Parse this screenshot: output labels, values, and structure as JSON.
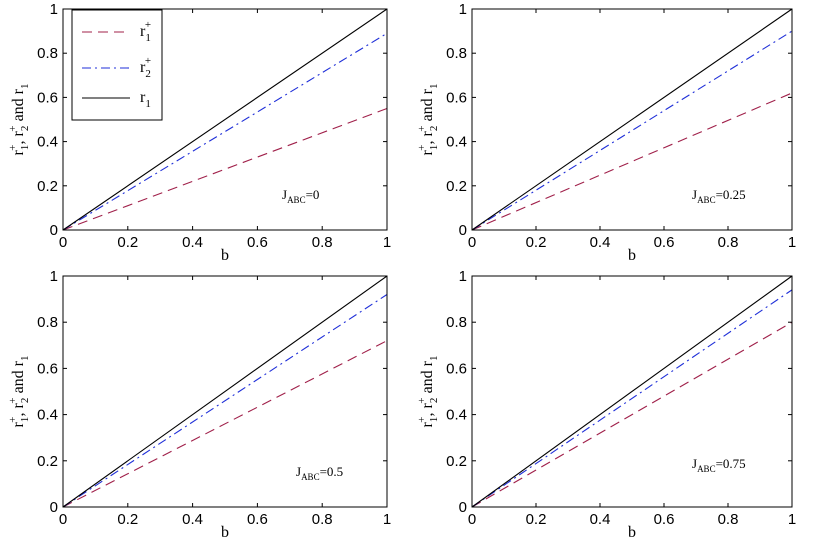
{
  "chart_data": [
    {
      "type": "line",
      "xlabel": "b",
      "ylabel": "r1+, r2+ and r1",
      "xlim": [
        0,
        1
      ],
      "ylim": [
        0,
        1
      ],
      "xticks": [
        "0",
        "0.2",
        "0.4",
        "0.6",
        "0.8",
        "1"
      ],
      "yticks": [
        "0",
        "0.2",
        "0.4",
        "0.6",
        "0.8",
        "1"
      ],
      "annotation": {
        "main": "J",
        "sub": "ABC",
        "value": "=0"
      },
      "legend": {
        "placement": "top-left",
        "entries": [
          {
            "base": "r",
            "sub": "1",
            "sup": "+"
          },
          {
            "base": "r",
            "sub": "2",
            "sup": "+"
          },
          {
            "base": "r",
            "sub": "1",
            "sup": ""
          }
        ]
      },
      "series": [
        {
          "name": "r1+",
          "style": "dashed",
          "color": "#a0204a",
          "x": [
            0,
            1
          ],
          "y": [
            0,
            0.55
          ]
        },
        {
          "name": "r2+",
          "style": "dashdot",
          "color": "#1f2fd8",
          "x": [
            0,
            1
          ],
          "y": [
            0,
            0.89
          ]
        },
        {
          "name": "r1",
          "style": "solid",
          "color": "#000000",
          "x": [
            0,
            1
          ],
          "y": [
            0,
            1
          ]
        }
      ]
    },
    {
      "type": "line",
      "xlabel": "b",
      "ylabel": "r1+, r2+ and r1",
      "xlim": [
        0,
        1
      ],
      "ylim": [
        0,
        1
      ],
      "xticks": [
        "0",
        "0.2",
        "0.4",
        "0.6",
        "0.8",
        "1"
      ],
      "yticks": [
        "0",
        "0.2",
        "0.4",
        "0.6",
        "0.8",
        "1"
      ],
      "annotation": {
        "main": "J",
        "sub": "ABC",
        "value": "=0.25"
      },
      "series": [
        {
          "name": "r1+",
          "style": "dashed",
          "color": "#a0204a",
          "x": [
            0,
            1
          ],
          "y": [
            0,
            0.62
          ]
        },
        {
          "name": "r2+",
          "style": "dashdot",
          "color": "#1f2fd8",
          "x": [
            0,
            1
          ],
          "y": [
            0,
            0.9
          ]
        },
        {
          "name": "r1",
          "style": "solid",
          "color": "#000000",
          "x": [
            0,
            1
          ],
          "y": [
            0,
            1
          ]
        }
      ]
    },
    {
      "type": "line",
      "xlabel": "b",
      "ylabel": "r1+, r2+ and r1",
      "xlim": [
        0,
        1
      ],
      "ylim": [
        0,
        1
      ],
      "xticks": [
        "0",
        "0.2",
        "0.4",
        "0.6",
        "0.8",
        "1"
      ],
      "yticks": [
        "0",
        "0.2",
        "0.4",
        "0.6",
        "0.8",
        "1"
      ],
      "annotation": {
        "main": "J",
        "sub": "ABC",
        "value": "=0.5"
      },
      "series": [
        {
          "name": "r1+",
          "style": "dashed",
          "color": "#a0204a",
          "x": [
            0,
            1
          ],
          "y": [
            0,
            0.72
          ]
        },
        {
          "name": "r2+",
          "style": "dashdot",
          "color": "#1f2fd8",
          "x": [
            0,
            1
          ],
          "y": [
            0,
            0.92
          ]
        },
        {
          "name": "r1",
          "style": "solid",
          "color": "#000000",
          "x": [
            0,
            1
          ],
          "y": [
            0,
            1
          ]
        }
      ]
    },
    {
      "type": "line",
      "xlabel": "b",
      "ylabel": "r1+, r2+ and r1",
      "xlim": [
        0,
        1
      ],
      "ylim": [
        0,
        1
      ],
      "xticks": [
        "0",
        "0.2",
        "0.4",
        "0.6",
        "0.8",
        "1"
      ],
      "yticks": [
        "0",
        "0.2",
        "0.4",
        "0.6",
        "0.8",
        "1"
      ],
      "annotation": {
        "main": "J",
        "sub": "ABC",
        "value": "=0.75"
      },
      "series": [
        {
          "name": "r1+",
          "style": "dashed",
          "color": "#a0204a",
          "x": [
            0,
            1
          ],
          "y": [
            0,
            0.8
          ]
        },
        {
          "name": "r2+",
          "style": "dashdot",
          "color": "#1f2fd8",
          "x": [
            0,
            1
          ],
          "y": [
            0,
            0.94
          ]
        },
        {
          "name": "r1",
          "style": "solid",
          "color": "#000000",
          "x": [
            0,
            1
          ],
          "y": [
            0,
            1
          ]
        }
      ]
    }
  ]
}
